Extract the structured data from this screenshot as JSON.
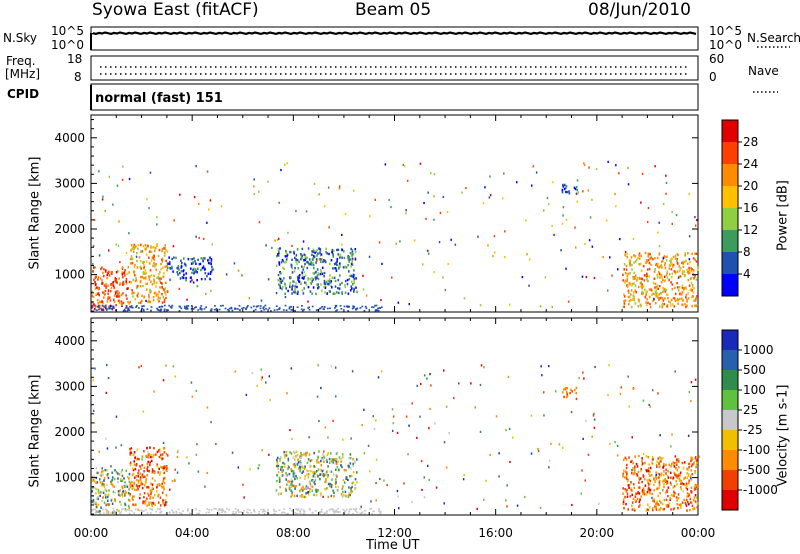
{
  "header": {
    "radar_title": "Syowa East (fitACF)",
    "beam": "Beam 05",
    "date": "08/Jun/2010"
  },
  "status_panels": {
    "nsky_label": "N.Sky",
    "nsearch_label": "N.Search",
    "freq_label_top": "Freq.",
    "freq_label_bottom": "[MHz]",
    "nave_label": "Nave",
    "cpid_label": "CPID",
    "cpid_value": "normal (fast) 151",
    "noise_ticks": [
      "10^5",
      "10^0"
    ],
    "freq_ticks": [
      "18",
      "8"
    ],
    "nave_ticks": [
      "60",
      "0"
    ]
  },
  "chart_data": [
    {
      "type": "heatmap",
      "name": "power",
      "xlabel": "Time UT",
      "ylabel": "Slant Range [km]",
      "x_ticks": [
        "00:00",
        "04:00",
        "08:00",
        "12:00",
        "16:00",
        "20:00",
        "00:00"
      ],
      "xlim_hours": [
        0,
        24
      ],
      "y_ticks": [
        1000,
        2000,
        3000,
        4000
      ],
      "ylim": [
        180,
        4500
      ],
      "colorbar": {
        "label": "Power [dB]",
        "ticks": [
          "28",
          "24",
          "20",
          "16",
          "12",
          "8",
          "4"
        ],
        "colors": [
          "#e00000",
          "#ff4000",
          "#ff8c00",
          "#ffc000",
          "#90d040",
          "#3c9c5c",
          "#2050b0",
          "#0000ff"
        ]
      },
      "echo_regions": [
        {
          "t": [
            0.0,
            1.5
          ],
          "r": [
            250,
            1200
          ],
          "level": "high"
        },
        {
          "t": [
            1.5,
            3.0
          ],
          "r": [
            400,
            1700
          ],
          "level": "mid-high"
        },
        {
          "t": [
            3.0,
            4.8
          ],
          "r": [
            900,
            1400
          ],
          "level": "low"
        },
        {
          "t": [
            7.3,
            10.5
          ],
          "r": [
            600,
            1600
          ],
          "level": "low-mid"
        },
        {
          "t": [
            18.6,
            19.2
          ],
          "r": [
            2750,
            3000
          ],
          "level": "low"
        },
        {
          "t": [
            21.0,
            24.0
          ],
          "r": [
            300,
            1500
          ],
          "level": "mid-high"
        }
      ]
    },
    {
      "type": "heatmap",
      "name": "velocity",
      "xlabel": "Time UT",
      "ylabel": "Slant Range [km]",
      "x_ticks": [
        "00:00",
        "04:00",
        "08:00",
        "12:00",
        "16:00",
        "20:00",
        "00:00"
      ],
      "xlim_hours": [
        0,
        24
      ],
      "y_ticks": [
        1000,
        2000,
        3000,
        4000
      ],
      "ylim": [
        180,
        4500
      ],
      "colorbar": {
        "label": "Velocity [m s-1]",
        "ticks": [
          "1000",
          "500",
          "100",
          "25",
          "-25",
          "-100",
          "-500",
          "-1000"
        ],
        "colors": [
          "#1a2ab8",
          "#2860b0",
          "#2f8c4c",
          "#60c040",
          "#c8c8c8",
          "#f0c000",
          "#ff8c00",
          "#f04000",
          "#e00000"
        ]
      },
      "echo_regions": [
        {
          "t": [
            0.0,
            1.5
          ],
          "r": [
            250,
            1200
          ],
          "level": "mixed"
        },
        {
          "t": [
            1.5,
            3.0
          ],
          "r": [
            400,
            1700
          ],
          "level": "toward"
        },
        {
          "t": [
            7.3,
            10.5
          ],
          "r": [
            600,
            1600
          ],
          "level": "mixed"
        },
        {
          "t": [
            18.6,
            19.2
          ],
          "r": [
            2750,
            3000
          ],
          "level": "away"
        },
        {
          "t": [
            21.0,
            24.0
          ],
          "r": [
            300,
            1500
          ],
          "level": "toward"
        }
      ]
    }
  ]
}
